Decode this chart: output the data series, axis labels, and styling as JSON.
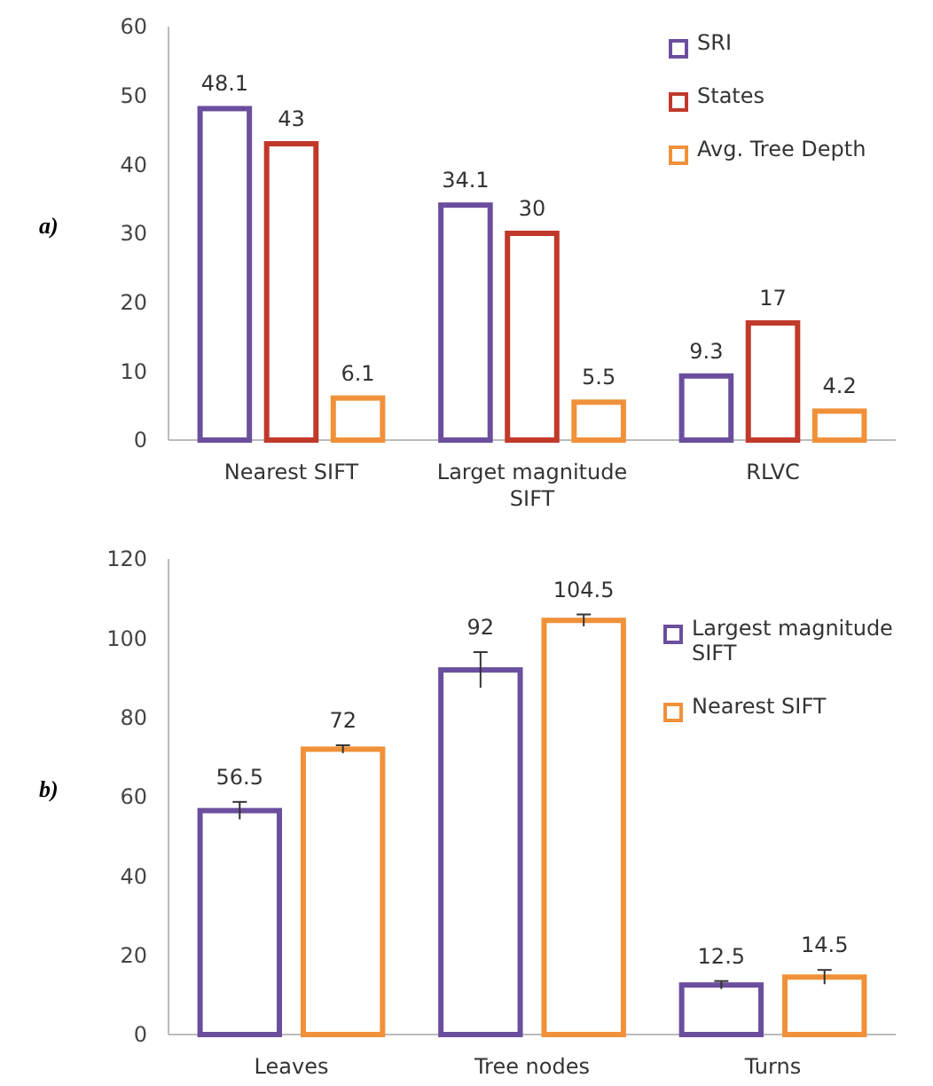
{
  "chart_data": [
    {
      "type": "bar",
      "annotations": [
        "a)"
      ],
      "categories": [
        "Nearest SIFT",
        "Larget magnitude SIFT",
        "RLVC"
      ],
      "series": [
        {
          "name": "SRI",
          "color": "#6b4f9e",
          "values": [
            48.1,
            34.1,
            9.3
          ]
        },
        {
          "name": "States",
          "color": "#c0392b",
          "values": [
            43,
            30,
            17
          ]
        },
        {
          "name": "Avg. Tree Depth",
          "color": "#f0913a",
          "values": [
            6.1,
            5.5,
            4.2
          ]
        }
      ],
      "ylim": [
        0,
        60
      ],
      "yticks": [
        0,
        10,
        20,
        30,
        40,
        50,
        60
      ],
      "data_labels": true,
      "legend": "top right",
      "grid": false
    },
    {
      "type": "bar",
      "annotations": [
        "b)"
      ],
      "categories": [
        "Leaves",
        "Tree nodes",
        "Turns"
      ],
      "series": [
        {
          "name": "Largest magnitude SIFT",
          "color": "#6b4f9e",
          "values": [
            56.5,
            92,
            12.5
          ],
          "errors": [
            2.2,
            4.5,
            1
          ]
        },
        {
          "name": "Nearest SIFT",
          "color": "#f0913a",
          "values": [
            72,
            104.5,
            14.5
          ],
          "errors": [
            1,
            1.5,
            1.8
          ]
        }
      ],
      "ylim": [
        0,
        120
      ],
      "yticks": [
        0,
        20,
        40,
        60,
        80,
        100,
        120
      ],
      "data_labels": true,
      "legend": "right",
      "grid": false
    }
  ]
}
